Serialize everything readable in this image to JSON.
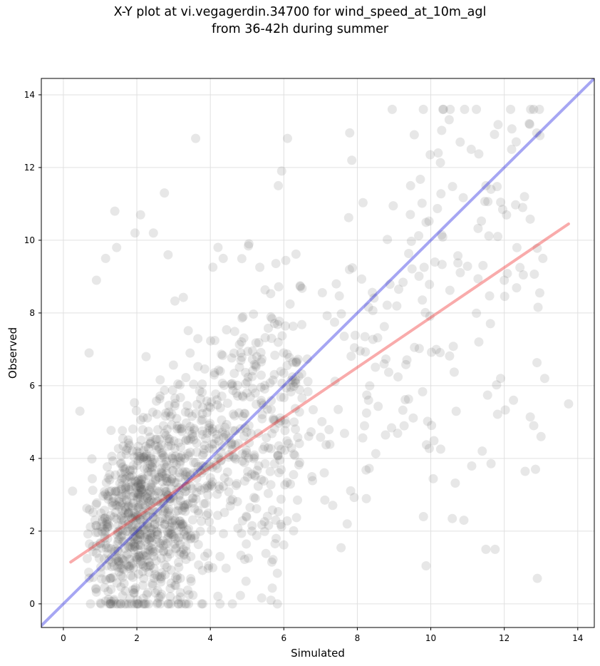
{
  "chart_data": {
    "type": "scatter",
    "title_line1": "X-Y plot at vi.vegagerdin.34700 for wind_speed_at_10m_agl",
    "title_line2": "from 36-42h during summer",
    "xlabel": "Simulated",
    "ylabel": "Observed",
    "xlim": [
      -0.6,
      14.45
    ],
    "ylim": [
      -0.65,
      14.45
    ],
    "xticks": [
      0,
      2,
      4,
      6,
      8,
      10,
      12,
      14
    ],
    "yticks": [
      0,
      2,
      4,
      6,
      8,
      10,
      12,
      14
    ],
    "grid": true,
    "colors": {
      "points": "#555555",
      "identity_line": "#0000dd",
      "fit_line": "#ee2222",
      "grid": "#e0e0e0"
    },
    "identity_line": {
      "x": [
        -0.6,
        14.45
      ],
      "y": [
        -0.6,
        14.45
      ]
    },
    "fit_line": {
      "x": [
        0.2,
        13.75
      ],
      "y": [
        1.15,
        10.45
      ]
    },
    "notable_points": [
      {
        "x": 8.95,
        "y": 13.6
      },
      {
        "x": 3.6,
        "y": 12.8
      },
      {
        "x": 6.1,
        "y": 12.8
      },
      {
        "x": 9.55,
        "y": 12.9
      },
      {
        "x": 7.85,
        "y": 12.2
      },
      {
        "x": 10.2,
        "y": 12.4
      },
      {
        "x": 10.8,
        "y": 12.7
      },
      {
        "x": 11.1,
        "y": 12.5
      },
      {
        "x": 12.2,
        "y": 12.5
      },
      {
        "x": 2.75,
        "y": 11.3
      },
      {
        "x": 5.85,
        "y": 11.5
      },
      {
        "x": 9.45,
        "y": 11.5
      },
      {
        "x": 11.5,
        "y": 11.5
      },
      {
        "x": 1.4,
        "y": 10.8
      },
      {
        "x": 2.1,
        "y": 10.7
      },
      {
        "x": 1.95,
        "y": 10.2
      },
      {
        "x": 2.45,
        "y": 10.2
      },
      {
        "x": 12.55,
        "y": 11.2
      },
      {
        "x": 12.5,
        "y": 10.9
      },
      {
        "x": 13.75,
        "y": 5.5
      },
      {
        "x": 13.1,
        "y": 6.2
      },
      {
        "x": 13.0,
        "y": 4.6
      },
      {
        "x": 12.85,
        "y": 3.7
      },
      {
        "x": 12.9,
        "y": 0.7
      },
      {
        "x": 11.5,
        "y": 1.5
      },
      {
        "x": 11.75,
        "y": 1.5
      },
      {
        "x": 10.9,
        "y": 2.3
      },
      {
        "x": 9.8,
        "y": 2.4
      },
      {
        "x": 11.4,
        "y": 4.2
      },
      {
        "x": 12.25,
        "y": 5.6
      },
      {
        "x": 11.9,
        "y": 6.2
      },
      {
        "x": 12.0,
        "y": 8.9
      },
      {
        "x": 13.05,
        "y": 9.5
      },
      {
        "x": 0.25,
        "y": 3.1
      },
      {
        "x": 0.45,
        "y": 5.3
      },
      {
        "x": 0.7,
        "y": 6.9
      },
      {
        "x": 0.9,
        "y": 8.9
      },
      {
        "x": 1.15,
        "y": 9.5
      },
      {
        "x": 1.45,
        "y": 9.8
      },
      {
        "x": 2.85,
        "y": 9.6
      },
      {
        "x": 4.35,
        "y": 9.5
      },
      {
        "x": 5.05,
        "y": 9.9
      },
      {
        "x": 4.6,
        "y": 0.0
      },
      {
        "x": 1.55,
        "y": 0.0
      },
      {
        "x": 5.65,
        "y": 0.1
      }
    ]
  }
}
